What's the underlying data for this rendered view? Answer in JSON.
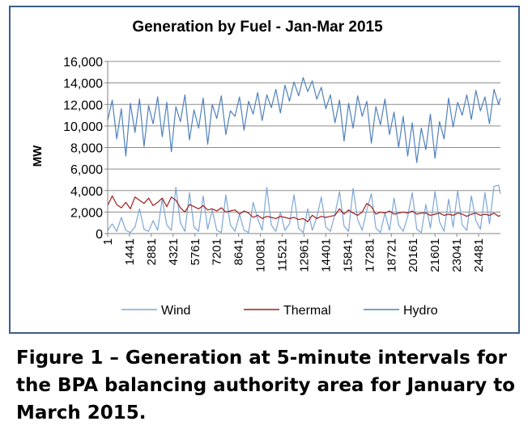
{
  "caption": "Figure 1 – Generation at 5-minute intervals for the BPA balancing authority area for January to March 2015.",
  "chart_data": {
    "type": "line",
    "title": "Generation by Fuel - Jan-Mar 2015",
    "xlabel": "",
    "ylabel": "MW",
    "ylim": [
      0,
      16000
    ],
    "y_ticks": [
      "0",
      "2,000",
      "4,000",
      "6,000",
      "8,000",
      "10,000",
      "12,000",
      "14,000",
      "16,000"
    ],
    "x_ticks": [
      "1",
      "1441",
      "2881",
      "4321",
      "5761",
      "7201",
      "8641",
      "10081",
      "11521",
      "12961",
      "14401",
      "15841",
      "17281",
      "18721",
      "20161",
      "21601",
      "23041",
      "24481"
    ],
    "xlim": [
      1,
      25920
    ],
    "grid": true,
    "legend_position": "bottom",
    "series": [
      {
        "name": "Wind",
        "color": "#7ea6d6",
        "x": [
          1,
          300,
          600,
          900,
          1200,
          1500,
          1800,
          2100,
          2400,
          2700,
          3000,
          3300,
          3600,
          3900,
          4200,
          4500,
          4800,
          5100,
          5400,
          5700,
          6000,
          6300,
          6600,
          6900,
          7200,
          7500,
          7800,
          8100,
          8400,
          8700,
          9000,
          9300,
          9600,
          9900,
          10200,
          10500,
          10800,
          11100,
          11400,
          11700,
          12000,
          12300,
          12600,
          12900,
          13200,
          13500,
          13800,
          14100,
          14400,
          14700,
          15000,
          15300,
          15600,
          15900,
          16200,
          16500,
          16800,
          17100,
          17400,
          17700,
          18000,
          18300,
          18600,
          18900,
          19200,
          19500,
          19800,
          20100,
          20400,
          20700,
          21000,
          21300,
          21600,
          21900,
          22200,
          22500,
          22800,
          23100,
          23400,
          23700,
          24000,
          24300,
          24600,
          24900,
          25200,
          25500,
          25800,
          25920
        ],
        "values": [
          300,
          900,
          200,
          1500,
          300,
          100,
          600,
          2300,
          400,
          200,
          1200,
          300,
          3200,
          800,
          300,
          4300,
          1000,
          200,
          3800,
          600,
          200,
          3500,
          400,
          2200,
          300,
          100,
          3600,
          800,
          200,
          1800,
          300,
          100,
          2900,
          1400,
          300,
          4300,
          800,
          200,
          2000,
          300,
          900,
          3600,
          500,
          100,
          2300,
          300,
          1500,
          3400,
          600,
          200,
          1800,
          3900,
          700,
          200,
          4200,
          1300,
          300,
          2200,
          3700,
          500,
          100,
          1900,
          300,
          3300,
          800,
          200,
          1600,
          3800,
          400,
          100,
          2700,
          500,
          3900,
          1100,
          200,
          3200,
          600,
          4000,
          800,
          300,
          3500,
          1200,
          400,
          3800,
          900,
          4400,
          4500,
          3700
        ]
      },
      {
        "name": "Thermal",
        "color": "#a11d1d",
        "x": [
          1,
          300,
          600,
          900,
          1200,
          1500,
          1800,
          2100,
          2400,
          2700,
          3000,
          3300,
          3600,
          3900,
          4200,
          4500,
          4800,
          5100,
          5400,
          5700,
          6000,
          6300,
          6600,
          6900,
          7200,
          7500,
          7800,
          8100,
          8400,
          8700,
          9000,
          9300,
          9600,
          9900,
          10200,
          10500,
          10800,
          11100,
          11400,
          11700,
          12000,
          12300,
          12600,
          12900,
          13200,
          13500,
          13800,
          14100,
          14400,
          14700,
          15000,
          15300,
          15600,
          15900,
          16200,
          16500,
          16800,
          17100,
          17400,
          17700,
          18000,
          18300,
          18600,
          18900,
          19200,
          19500,
          19800,
          20100,
          20400,
          20700,
          21000,
          21300,
          21600,
          21900,
          22200,
          22500,
          22800,
          23100,
          23400,
          23700,
          24000,
          24300,
          24600,
          24900,
          25200,
          25500,
          25800,
          25920
        ],
        "values": [
          2600,
          3500,
          2700,
          2400,
          2900,
          2300,
          3400,
          3100,
          2800,
          3300,
          2600,
          2900,
          3300,
          2500,
          3400,
          3100,
          2400,
          2000,
          2700,
          2500,
          2300,
          2600,
          2200,
          2300,
          2100,
          2400,
          2000,
          2100,
          2200,
          1800,
          2100,
          1900,
          1500,
          1700,
          1400,
          1600,
          1500,
          1400,
          1600,
          1500,
          1400,
          1500,
          1300,
          1400,
          1100,
          1700,
          1400,
          1600,
          1500,
          1600,
          1700,
          2300,
          1800,
          2200,
          1900,
          1700,
          2000,
          2800,
          2500,
          1800,
          2000,
          1900,
          2100,
          1800,
          1900,
          2000,
          1900,
          2100,
          1800,
          1900,
          1900,
          1700,
          1800,
          1900,
          1700,
          1800,
          1700,
          1900,
          1800,
          1600,
          1800,
          1900,
          1700,
          1800,
          1700,
          1900,
          1600,
          1700
        ]
      },
      {
        "name": "Hydro",
        "color": "#4f81bd",
        "x": [
          1,
          300,
          600,
          900,
          1200,
          1500,
          1800,
          2100,
          2400,
          2700,
          3000,
          3300,
          3600,
          3900,
          4200,
          4500,
          4800,
          5100,
          5400,
          5700,
          6000,
          6300,
          6600,
          6900,
          7200,
          7500,
          7800,
          8100,
          8400,
          8700,
          9000,
          9300,
          9600,
          9900,
          10200,
          10500,
          10800,
          11100,
          11400,
          11700,
          12000,
          12300,
          12600,
          12900,
          13200,
          13500,
          13800,
          14100,
          14400,
          14700,
          15000,
          15300,
          15600,
          15900,
          16200,
          16500,
          16800,
          17100,
          17400,
          17700,
          18000,
          18300,
          18600,
          18900,
          19200,
          19500,
          19800,
          20100,
          20400,
          20700,
          21000,
          21300,
          21600,
          21900,
          22200,
          22500,
          22800,
          23100,
          23400,
          23700,
          24000,
          24300,
          24600,
          24900,
          25200,
          25500,
          25800,
          25920
        ],
        "values": [
          10500,
          12400,
          8800,
          11600,
          7200,
          12100,
          9400,
          12500,
          8100,
          11900,
          10200,
          12700,
          9000,
          12200,
          7600,
          11800,
          10400,
          12900,
          8700,
          11500,
          9800,
          12600,
          8300,
          12000,
          10700,
          12800,
          9200,
          11400,
          10900,
          12700,
          9600,
          12300,
          11100,
          13100,
          10500,
          12900,
          11700,
          13400,
          11200,
          13800,
          12300,
          14100,
          12800,
          14500,
          13200,
          14200,
          12500,
          13600,
          11600,
          12900,
          10300,
          12400,
          8600,
          12100,
          9800,
          12800,
          10900,
          12300,
          8400,
          11800,
          10100,
          12500,
          9200,
          11300,
          8000,
          10900,
          7200,
          10300,
          6600,
          9800,
          7800,
          11100,
          7000,
          10400,
          8800,
          12600,
          9900,
          12200,
          11000,
          12900,
          10600,
          13300,
          11400,
          12700,
          10200,
          13400,
          12000,
          12600
        ]
      }
    ]
  }
}
